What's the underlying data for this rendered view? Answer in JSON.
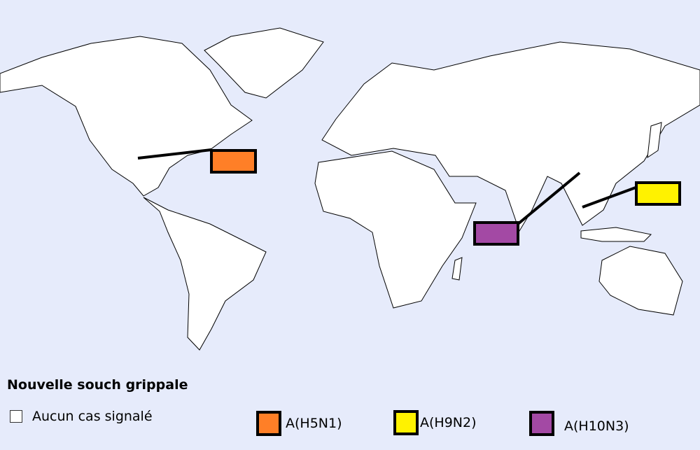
{
  "legend": {
    "title": "Nouvelle souch grippale",
    "items": [
      {
        "label": "Aucun cas signalé",
        "color": "#ffffff"
      },
      {
        "label": "A(H5N1)",
        "color": "#ff7f27"
      },
      {
        "label": "A(H9N2)",
        "color": "#fff200"
      },
      {
        "label": "A(H10N3)",
        "color": "#a349a4"
      }
    ]
  },
  "map": {
    "background": "#e6ebfb",
    "markers": [
      {
        "strain": "A(H5N1)",
        "location": "United States (east)",
        "color": "#ff7f27"
      },
      {
        "strain": "A(H10N3)",
        "location": "China",
        "color": "#a349a4"
      },
      {
        "strain": "A(H9N2)",
        "location": "Southeast Asia",
        "color": "#fff200"
      }
    ]
  }
}
